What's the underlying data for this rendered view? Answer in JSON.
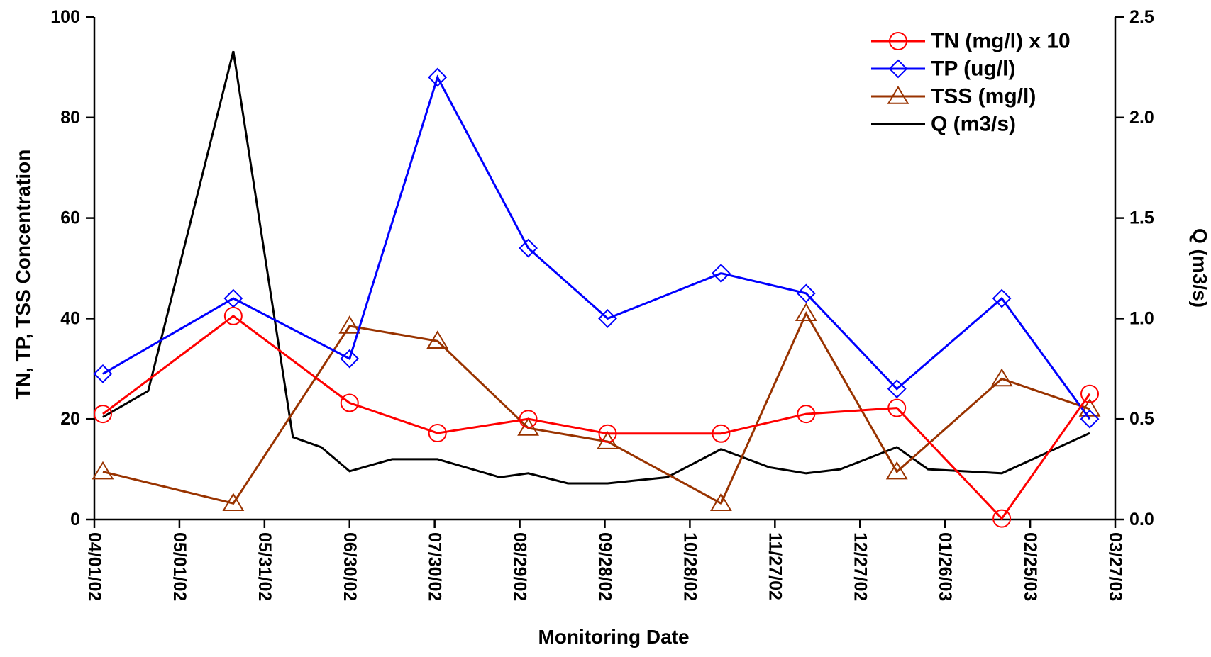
{
  "chart_data": {
    "type": "line",
    "xlabel": "Monitoring Date",
    "ylabel_left": "TN, TP, TSS Concentration",
    "ylabel_right": "Q (m3/s)",
    "xlim": [
      "2002-04-01",
      "2003-03-27"
    ],
    "ylim_left": [
      0,
      100
    ],
    "ylim_right": [
      0,
      2.5
    ],
    "x_ticks": [
      "2002-04-01",
      "2002-05-01",
      "2002-05-31",
      "2002-06-30",
      "2002-07-30",
      "2002-08-29",
      "2002-09-28",
      "2002-10-28",
      "2002-11-27",
      "2002-12-27",
      "2003-01-26",
      "2003-02-25",
      "2003-03-27"
    ],
    "x_tick_labels": [
      "04/01/02",
      "05/01/02",
      "05/31/02",
      "06/30/02",
      "07/30/02",
      "08/29/02",
      "09/28/02",
      "10/28/02",
      "11/27/02",
      "12/27/02",
      "01/26/03",
      "02/25/03",
      "03/27/03"
    ],
    "y_ticks_left": [
      0,
      20,
      40,
      60,
      80,
      100
    ],
    "y_tick_labels_left": [
      "0",
      "20",
      "40",
      "60",
      "80",
      "100"
    ],
    "y_ticks_right": [
      0,
      0.5,
      1.0,
      1.5,
      2.0,
      2.5
    ],
    "y_tick_labels_right": [
      "0.0",
      "0.5",
      "1.0",
      "1.5",
      "2.0",
      "2.5"
    ],
    "legend_position": "top-right",
    "grid": false,
    "series": [
      {
        "name": "TN (mg/l) x 10",
        "color": "#ff0000",
        "marker": "circle",
        "axis": "left",
        "points": [
          [
            "2002-04-04",
            21
          ],
          [
            "2002-05-20",
            40.5
          ],
          [
            "2002-06-30",
            23.2
          ],
          [
            "2002-07-31",
            17.2
          ],
          [
            "2002-09-01",
            20
          ],
          [
            "2002-09-29",
            17.1
          ],
          [
            "2002-11-08",
            17.1
          ],
          [
            "2002-12-08",
            21
          ],
          [
            "2003-01-09",
            22.2
          ],
          [
            "2003-02-15",
            0.2
          ],
          [
            "2003-03-18",
            25
          ]
        ]
      },
      {
        "name": "TP (ug/l)",
        "color": "#0000ff",
        "marker": "diamond",
        "axis": "left",
        "points": [
          [
            "2002-04-04",
            29
          ],
          [
            "2002-05-20",
            44
          ],
          [
            "2002-06-30",
            32
          ],
          [
            "2002-07-31",
            88
          ],
          [
            "2002-09-01",
            54
          ],
          [
            "2002-09-29",
            40
          ],
          [
            "2002-11-08",
            49
          ],
          [
            "2002-12-08",
            45
          ],
          [
            "2003-01-09",
            26
          ],
          [
            "2003-02-15",
            44
          ],
          [
            "2003-03-18",
            20
          ]
        ]
      },
      {
        "name": "TSS (mg/l)",
        "color": "#993300",
        "marker": "triangle",
        "axis": "left",
        "points": [
          [
            "2002-04-04",
            9.5
          ],
          [
            "2002-05-20",
            3.2
          ],
          [
            "2002-06-30",
            38.5
          ],
          [
            "2002-07-31",
            35.5
          ],
          [
            "2002-09-01",
            18.2
          ],
          [
            "2002-09-29",
            15.5
          ],
          [
            "2002-11-08",
            3.2
          ],
          [
            "2002-12-08",
            41
          ],
          [
            "2003-01-09",
            9.5
          ],
          [
            "2003-02-15",
            28
          ],
          [
            "2003-03-18",
            22
          ]
        ]
      },
      {
        "name": "Q (m3/s)",
        "color": "#000000",
        "marker": "none",
        "axis": "right",
        "points": [
          [
            "2002-04-04",
            0.51
          ],
          [
            "2002-04-20",
            0.64
          ],
          [
            "2002-05-20",
            2.33
          ],
          [
            "2002-06-10",
            0.41
          ],
          [
            "2002-06-20",
            0.36
          ],
          [
            "2002-06-30",
            0.24
          ],
          [
            "2002-07-15",
            0.3
          ],
          [
            "2002-07-31",
            0.3
          ],
          [
            "2002-08-22",
            0.21
          ],
          [
            "2002-09-01",
            0.23
          ],
          [
            "2002-09-15",
            0.18
          ],
          [
            "2002-09-29",
            0.18
          ],
          [
            "2002-10-20",
            0.21
          ],
          [
            "2002-11-08",
            0.35
          ],
          [
            "2002-11-25",
            0.26
          ],
          [
            "2002-12-08",
            0.23
          ],
          [
            "2002-12-20",
            0.25
          ],
          [
            "2003-01-09",
            0.36
          ],
          [
            "2003-01-20",
            0.25
          ],
          [
            "2003-02-15",
            0.23
          ],
          [
            "2003-03-18",
            0.43
          ]
        ]
      }
    ]
  }
}
